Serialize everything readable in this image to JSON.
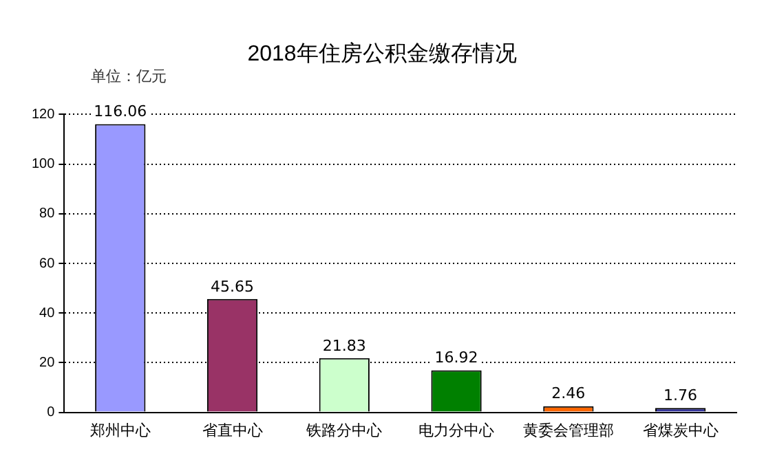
{
  "chart_data": {
    "type": "bar",
    "title": "2018年住房公积金缴存情况",
    "annotations": [
      "单位：亿元"
    ],
    "categories": [
      "郑州中心",
      "省直中心",
      "铁路分中心",
      "电力分中心",
      "黄委会管理部",
      "省煤炭中心"
    ],
    "values": [
      116.06,
      45.65,
      21.83,
      16.92,
      2.46,
      1.76
    ],
    "colors": [
      "#9999ff",
      "#993366",
      "#ccffcc",
      "#008000",
      "#ff6600",
      "#333399"
    ],
    "ylim": [
      0,
      120
    ],
    "yticks": [
      0,
      20,
      40,
      60,
      80,
      100,
      120
    ],
    "grid": "y",
    "data_labels": true
  }
}
